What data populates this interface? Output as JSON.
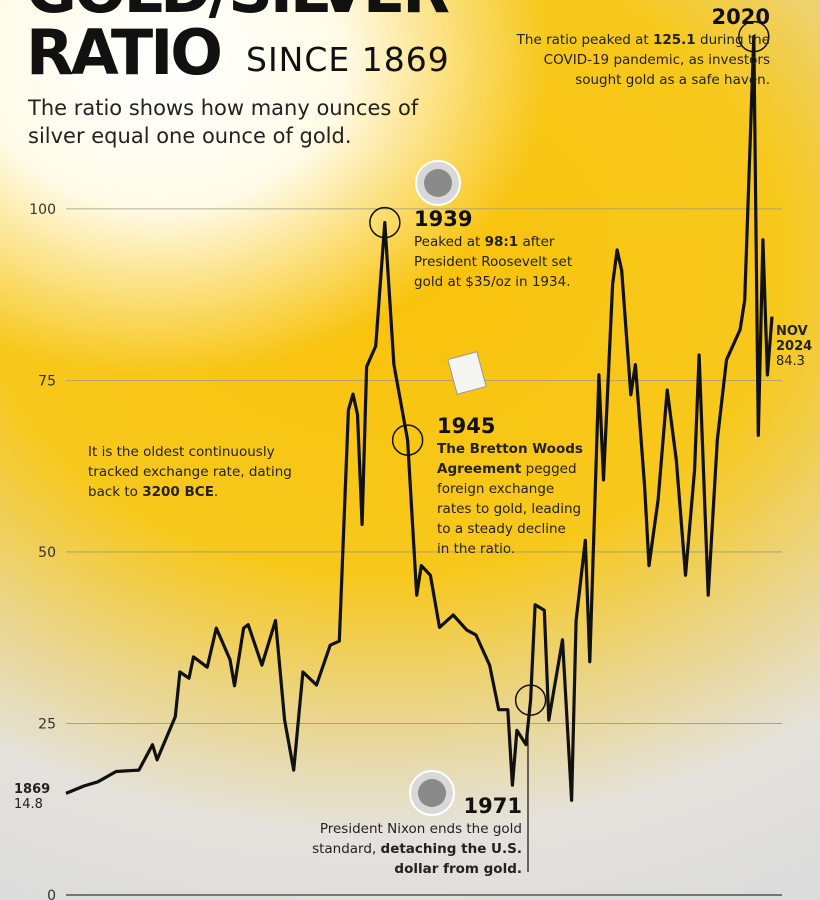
{
  "chart_data": {
    "type": "line",
    "title_line1": "GOLD/SILVER",
    "title_line2": "RATIO",
    "title_suffix": "SINCE 1869",
    "subtitle": "The ratio shows how many ounces of silver equal one ounce of gold.",
    "x": [
      1869,
      1873,
      1876,
      1880,
      1885,
      1888,
      1889,
      1893,
      1894,
      1896,
      1897,
      1900,
      1902,
      1905,
      1906,
      1908,
      1909,
      1912,
      1915,
      1917,
      1919,
      1921,
      1924,
      1927,
      1929,
      1931,
      1932,
      1933,
      1934,
      1935,
      1937,
      1939,
      1941,
      1944,
      1946,
      1947,
      1949,
      1951,
      1954,
      1957,
      1959,
      1962,
      1964,
      1966,
      1967,
      1968,
      1970,
      1971,
      1972,
      1974,
      1975,
      1978,
      1980,
      1981,
      1983,
      1984,
      1986,
      1987,
      1989,
      1990,
      1991,
      1993,
      1994,
      1996,
      1997,
      1999,
      2001,
      2003,
      2005,
      2007,
      2008,
      2010,
      2012,
      2014,
      2017,
      2018,
      2020,
      2021,
      2022,
      2023,
      2024
    ],
    "series": [
      {
        "name": "Gold/silver ratio",
        "color": "#111111",
        "values": [
          14.8,
          15.9,
          16.5,
          18,
          18.2,
          21.9,
          19.7,
          26,
          32.5,
          31.6,
          34.7,
          33.2,
          38.9,
          34.3,
          30.5,
          38.9,
          39.4,
          33.5,
          40,
          25.5,
          18.2,
          32.5,
          30.6,
          36.4,
          37,
          70.7,
          73,
          70,
          54,
          77,
          80,
          98,
          77.3,
          66.3,
          43.7,
          48,
          46.6,
          39,
          40.8,
          38.6,
          37.9,
          33.5,
          27,
          27,
          16,
          24,
          21.9,
          28.4,
          42.3,
          41.5,
          25.5,
          37.2,
          13.8,
          40,
          51.7,
          34,
          75.8,
          60.5,
          89,
          94,
          91,
          72.9,
          77.3,
          59.8,
          48,
          57.6,
          73.6,
          63.4,
          46.6,
          62,
          78.7,
          43.7,
          66.3,
          78,
          82.4,
          86.7,
          125.1,
          67,
          95.5,
          75.8,
          84.3
        ]
      }
    ],
    "xlim": [
      1869,
      2024
    ],
    "ylim": [
      0,
      130
    ],
    "yticks": [
      0,
      25,
      50,
      75,
      100
    ],
    "grid": true,
    "end_label": "NOV 2024",
    "annotations": [
      {
        "year": "2020",
        "lines": [
          [
            {
              "t": "The ratio peaked at ",
              "b": false
            },
            {
              "t": "125.1",
              "b": true
            },
            {
              "t": " during the",
              "b": false
            }
          ],
          [
            {
              "t": "COVID-19 pandemic, as investors",
              "b": false
            }
          ],
          [
            {
              "t": "sought gold as a safe haven.",
              "b": false
            }
          ]
        ]
      },
      {
        "year": "1939",
        "lines": [
          [
            {
              "t": "Peaked at ",
              "b": false
            },
            {
              "t": "98:1",
              "b": true
            },
            {
              "t": " after",
              "b": false
            }
          ],
          [
            {
              "t": "President Roosevelt set",
              "b": false
            }
          ],
          [
            {
              "t": "gold at $35/oz in 1934.",
              "b": false
            }
          ]
        ]
      },
      {
        "year": "1945",
        "lines": [
          [
            {
              "t": "The Bretton Woods",
              "b": true
            }
          ],
          [
            {
              "t": "Agreement",
              "b": true
            },
            {
              "t": " pegged",
              "b": false
            }
          ],
          [
            {
              "t": "foreign exchange",
              "b": false
            }
          ],
          [
            {
              "t": "rates to gold, leading",
              "b": false
            }
          ],
          [
            {
              "t": "to a steady decline",
              "b": false
            }
          ],
          [
            {
              "t": "in the ratio.",
              "b": false
            }
          ]
        ]
      },
      {
        "year": "1971",
        "lines": [
          [
            {
              "t": "President Nixon ends the gold",
              "b": false
            }
          ],
          [
            {
              "t": "standard, ",
              "b": false
            },
            {
              "t": "detaching the U.S.",
              "b": true
            }
          ],
          [
            {
              "t": "dollar from gold.",
              "b": true
            }
          ]
        ]
      },
      {
        "lines": [
          [
            {
              "t": "It is the oldest continuously",
              "b": false
            }
          ],
          [
            {
              "t": "tracked exchange rate, dating",
              "b": false
            }
          ],
          [
            {
              "t": "back to ",
              "b": false
            },
            {
              "t": "3200 BCE",
              "b": true
            },
            {
              "t": ".",
              "b": false
            }
          ]
        ]
      }
    ]
  }
}
